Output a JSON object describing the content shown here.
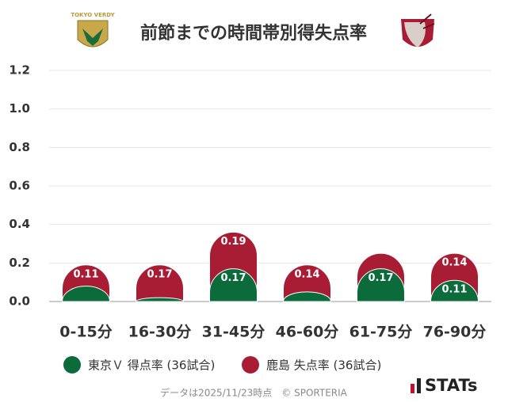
{
  "chart_data": {
    "type": "stacked_bar",
    "title": "前節までの時間帯別得失点率",
    "categories": [
      "0-15分",
      "16-30分",
      "31-45分",
      "46-60分",
      "61-75分",
      "76-90分"
    ],
    "series": [
      {
        "name": "東京Ｖ 得点率 (36試合)",
        "color": "#0b6b3a",
        "values": [
          0.08,
          0.02,
          0.17,
          0.05,
          0.17,
          0.11
        ]
      },
      {
        "name": "鹿島 失点率 (36試合)",
        "color": "#a81d34",
        "values": [
          0.11,
          0.17,
          0.19,
          0.14,
          0.08,
          0.14
        ]
      }
    ],
    "ylim": [
      0,
      1.2
    ],
    "yticks": [
      {
        "value": 0,
        "label": "0.0"
      },
      {
        "value": 0.2,
        "label": "0.2"
      },
      {
        "value": 0.4,
        "label": "0.4"
      },
      {
        "value": 0.6,
        "label": "0.6"
      },
      {
        "value": 0.8,
        "label": "0.8"
      },
      {
        "value": 1.0,
        "label": "1.0"
      },
      {
        "value": 1.2,
        "label": "1.2"
      }
    ],
    "grid": true,
    "source": "データは2025/11/23時点　© SPORTERIA",
    "brand": "STATs"
  }
}
